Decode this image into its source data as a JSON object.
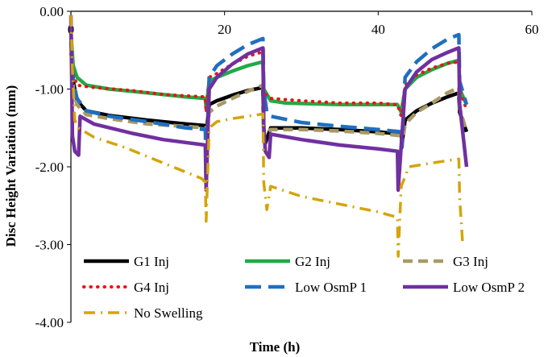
{
  "chart_data": {
    "type": "line",
    "title": "",
    "xlabel": "Time (h)",
    "ylabel": "Disc Height Variation (mm)",
    "xlim": [
      0,
      60
    ],
    "ylim": [
      -4,
      0
    ],
    "xticks": [
      0,
      20,
      40,
      60
    ],
    "yticks": [
      0,
      -1,
      -2,
      -3,
      -4
    ],
    "xtick_labels": [
      "0",
      "20",
      "40",
      "60"
    ],
    "ytick_labels": [
      "0.00",
      "-1.00",
      "-2.00",
      "-3.00",
      "-4.00"
    ],
    "grid": false,
    "legend_position": "bottom",
    "series": [
      {
        "name": "G1 Inj",
        "color": "#000000",
        "style": "solid",
        "points": [
          [
            0,
            -0.25
          ],
          [
            0.3,
            -0.9
          ],
          [
            0.8,
            -1.15
          ],
          [
            2,
            -1.28
          ],
          [
            5,
            -1.34
          ],
          [
            10,
            -1.4
          ],
          [
            15,
            -1.45
          ],
          [
            17.5,
            -1.47
          ],
          [
            17.6,
            -1.6
          ],
          [
            18,
            -1.2
          ],
          [
            19,
            -1.15
          ],
          [
            21,
            -1.08
          ],
          [
            23,
            -1.02
          ],
          [
            25,
            -0.98
          ],
          [
            25.1,
            -1.6
          ],
          [
            25.3,
            -1.7
          ],
          [
            26,
            -1.5
          ],
          [
            30,
            -1.5
          ],
          [
            35,
            -1.52
          ],
          [
            40,
            -1.55
          ],
          [
            43,
            -1.58
          ],
          [
            43.1,
            -1.7
          ],
          [
            43.5,
            -1.4
          ],
          [
            45,
            -1.28
          ],
          [
            47,
            -1.18
          ],
          [
            49,
            -1.1
          ],
          [
            50.5,
            -1.05
          ],
          [
            50.6,
            -1.3
          ],
          [
            51.5,
            -1.55
          ]
        ]
      },
      {
        "name": "G2 Inj",
        "color": "#22aa44",
        "style": "solid",
        "points": [
          [
            0,
            -0.3
          ],
          [
            0.3,
            -0.7
          ],
          [
            0.8,
            -0.85
          ],
          [
            2,
            -0.95
          ],
          [
            5,
            -1.0
          ],
          [
            10,
            -1.05
          ],
          [
            15,
            -1.1
          ],
          [
            17.5,
            -1.12
          ],
          [
            17.6,
            -1.25
          ],
          [
            18,
            -0.9
          ],
          [
            19,
            -0.85
          ],
          [
            21,
            -0.77
          ],
          [
            23,
            -0.7
          ],
          [
            25,
            -0.65
          ],
          [
            25.1,
            -1.0
          ],
          [
            26,
            -1.15
          ],
          [
            28,
            -1.18
          ],
          [
            35,
            -1.2
          ],
          [
            40,
            -1.2
          ],
          [
            42.5,
            -1.2
          ],
          [
            43,
            -1.3
          ],
          [
            43.5,
            -1.0
          ],
          [
            45,
            -0.85
          ],
          [
            47,
            -0.75
          ],
          [
            49,
            -0.67
          ],
          [
            50.5,
            -0.63
          ],
          [
            50.6,
            -1.0
          ],
          [
            51.5,
            -1.2
          ]
        ]
      },
      {
        "name": "G3 Inj",
        "color": "#a89a66",
        "style": "dashed",
        "points": [
          [
            0,
            -0.35
          ],
          [
            0.3,
            -1.0
          ],
          [
            0.8,
            -1.2
          ],
          [
            2,
            -1.33
          ],
          [
            5,
            -1.38
          ],
          [
            10,
            -1.45
          ],
          [
            15,
            -1.48
          ],
          [
            17.5,
            -1.5
          ],
          [
            17.6,
            -1.62
          ],
          [
            18,
            -1.3
          ],
          [
            19,
            -1.22
          ],
          [
            21,
            -1.12
          ],
          [
            23,
            -1.03
          ],
          [
            25,
            -0.95
          ],
          [
            25.1,
            -1.6
          ],
          [
            26,
            -1.52
          ],
          [
            30,
            -1.52
          ],
          [
            35,
            -1.54
          ],
          [
            40,
            -1.57
          ],
          [
            43,
            -1.6
          ],
          [
            43.1,
            -1.72
          ],
          [
            43.5,
            -1.45
          ],
          [
            45,
            -1.3
          ],
          [
            47,
            -1.18
          ],
          [
            49,
            -1.05
          ],
          [
            50.5,
            -0.98
          ],
          [
            50.6,
            -1.25
          ],
          [
            51.5,
            -1.55
          ]
        ]
      },
      {
        "name": "G4 Inj",
        "color": "#ee1111",
        "style": "dotted",
        "points": [
          [
            0,
            -0.55
          ],
          [
            0.3,
            -0.8
          ],
          [
            0.8,
            -0.95
          ],
          [
            3,
            -0.98
          ],
          [
            8,
            -1.02
          ],
          [
            12,
            -1.07
          ],
          [
            17.5,
            -1.1
          ],
          [
            17.6,
            -1.3
          ],
          [
            18,
            -0.85
          ],
          [
            19,
            -0.8
          ],
          [
            21,
            -0.68
          ],
          [
            23,
            -0.58
          ],
          [
            25,
            -0.52
          ],
          [
            25.1,
            -1.05
          ],
          [
            26,
            -1.12
          ],
          [
            30,
            -1.15
          ],
          [
            35,
            -1.18
          ],
          [
            40,
            -1.18
          ],
          [
            42.5,
            -1.2
          ],
          [
            43,
            -1.35
          ],
          [
            43.5,
            -0.95
          ],
          [
            45,
            -0.82
          ],
          [
            47,
            -0.73
          ],
          [
            49,
            -0.67
          ],
          [
            50.5,
            -0.65
          ],
          [
            50.6,
            -1.0
          ],
          [
            51.5,
            -1.27
          ]
        ]
      },
      {
        "name": "Low OsmP 1",
        "color": "#1f6fc0",
        "style": "longdash",
        "points": [
          [
            0,
            -0.4
          ],
          [
            0.3,
            -0.9
          ],
          [
            0.8,
            -1.12
          ],
          [
            2,
            -1.28
          ],
          [
            5,
            -1.35
          ],
          [
            10,
            -1.42
          ],
          [
            15,
            -1.5
          ],
          [
            17.5,
            -1.52
          ],
          [
            17.6,
            -2.0
          ],
          [
            18,
            -0.85
          ],
          [
            19,
            -0.7
          ],
          [
            21,
            -0.55
          ],
          [
            23,
            -0.43
          ],
          [
            25,
            -0.35
          ],
          [
            25.1,
            -1.0
          ],
          [
            25.5,
            -1.3
          ],
          [
            26,
            -1.35
          ],
          [
            30,
            -1.43
          ],
          [
            35,
            -1.48
          ],
          [
            40,
            -1.52
          ],
          [
            43,
            -1.55
          ],
          [
            43.1,
            -1.75
          ],
          [
            43.5,
            -0.85
          ],
          [
            45,
            -0.65
          ],
          [
            47,
            -0.48
          ],
          [
            49,
            -0.36
          ],
          [
            50.5,
            -0.3
          ],
          [
            50.6,
            -0.9
          ],
          [
            51.5,
            -1.2
          ]
        ]
      },
      {
        "name": "Low OsmP 2",
        "color": "#7030a0",
        "style": "solid",
        "points": [
          [
            0,
            -0.05
          ],
          [
            0.2,
            -1.6
          ],
          [
            0.5,
            -1.8
          ],
          [
            1,
            -1.85
          ],
          [
            1.2,
            -1.35
          ],
          [
            3,
            -1.45
          ],
          [
            8,
            -1.57
          ],
          [
            12,
            -1.65
          ],
          [
            17.5,
            -1.72
          ],
          [
            17.6,
            -2.3
          ],
          [
            18,
            -1.0
          ],
          [
            19,
            -0.85
          ],
          [
            21,
            -0.68
          ],
          [
            23,
            -0.55
          ],
          [
            25,
            -0.47
          ],
          [
            25.1,
            -1.45
          ],
          [
            25.3,
            -1.8
          ],
          [
            25.8,
            -1.88
          ],
          [
            26,
            -1.58
          ],
          [
            30,
            -1.65
          ],
          [
            35,
            -1.72
          ],
          [
            40,
            -1.77
          ],
          [
            42.5,
            -1.8
          ],
          [
            42.6,
            -2.3
          ],
          [
            43.5,
            -1.0
          ],
          [
            45,
            -0.78
          ],
          [
            47,
            -0.62
          ],
          [
            49,
            -0.53
          ],
          [
            50.5,
            -0.47
          ],
          [
            50.6,
            -1.2
          ],
          [
            51.5,
            -2.0
          ]
        ]
      },
      {
        "name": "No Swelling",
        "color": "#d4a40a",
        "style": "dashdot",
        "points": [
          [
            0,
            -0.05
          ],
          [
            0.2,
            -0.75
          ],
          [
            0.5,
            -1.4
          ],
          [
            1,
            -1.5
          ],
          [
            3,
            -1.62
          ],
          [
            7,
            -1.75
          ],
          [
            12,
            -1.95
          ],
          [
            17,
            -2.15
          ],
          [
            17.5,
            -2.2
          ],
          [
            17.6,
            -2.7
          ],
          [
            18,
            -1.5
          ],
          [
            19,
            -1.42
          ],
          [
            21,
            -1.38
          ],
          [
            23,
            -1.35
          ],
          [
            25,
            -1.32
          ],
          [
            25.1,
            -2.2
          ],
          [
            25.5,
            -2.55
          ],
          [
            26,
            -2.25
          ],
          [
            30,
            -2.38
          ],
          [
            35,
            -2.48
          ],
          [
            40,
            -2.58
          ],
          [
            42.5,
            -2.65
          ],
          [
            42.6,
            -3.15
          ],
          [
            43,
            -2.25
          ],
          [
            44,
            -2.0
          ],
          [
            47,
            -1.95
          ],
          [
            50.5,
            -1.9
          ],
          [
            50.6,
            -2.4
          ],
          [
            51,
            -3.0
          ]
        ]
      }
    ]
  }
}
